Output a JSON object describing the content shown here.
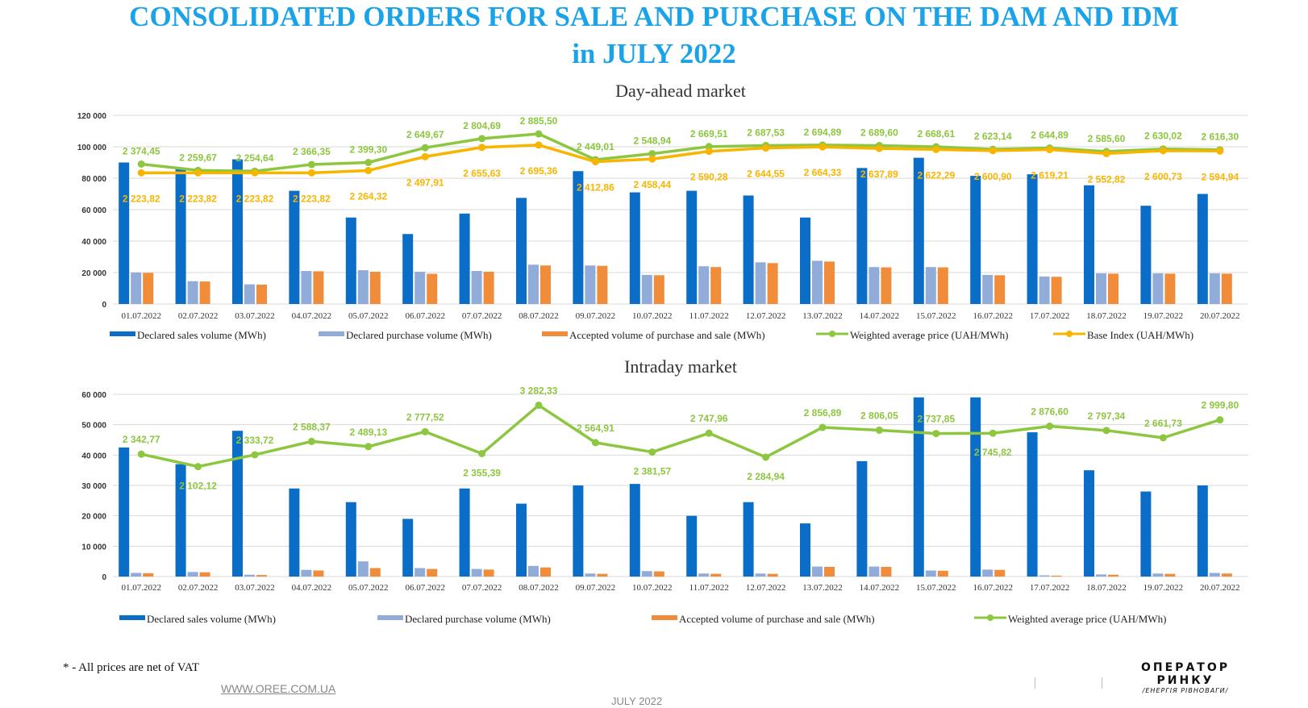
{
  "title": {
    "line1": "CONSOLIDATED ORDERS FOR SALE AND PURCHASE ON THE DAM AND IDM",
    "line2": "in JULY 2022"
  },
  "colors": {
    "title": "#1aa3e8",
    "sales": "#0a6ec8",
    "purchase": "#92acd9",
    "accepted": "#f08c3a",
    "weighted": "#8dc63f",
    "base": "#f7b500"
  },
  "footer": {
    "footnote": "* - All prices are net of VAT",
    "website": "WWW.OREE.COM.UA",
    "month": "JULY 2022",
    "logo_line1": "ОПЕРАТОР",
    "logo_line2": "РИНКУ",
    "logo_line3": "/ЕНЕРГІЯ РІВНОВАГИ/"
  },
  "chart_data": [
    {
      "type": "bar",
      "title": "Day-ahead market",
      "categories": [
        "01.07.2022",
        "02.07.2022",
        "03.07.2022",
        "04.07.2022",
        "05.07.2022",
        "06.07.2022",
        "07.07.2022",
        "08.07.2022",
        "09.07.2022",
        "10.07.2022",
        "11.07.2022",
        "12.07.2022",
        "13.07.2022",
        "14.07.2022",
        "15.07.2022",
        "16.07.2022",
        "17.07.2022",
        "18.07.2022",
        "19.07.2022",
        "20.07.2022"
      ],
      "ylim": [
        0,
        120000
      ],
      "yticks": [
        "0",
        "20 000",
        "40 000",
        "60 000",
        "80 000",
        "100 000",
        "120 000"
      ],
      "ytick_values": [
        0,
        20000,
        40000,
        60000,
        80000,
        100000,
        120000
      ],
      "grid": true,
      "legend_position": "bottom",
      "series": [
        {
          "name": "Declared sales volume (MWh)",
          "kind": "bar",
          "values": [
            90000,
            86000,
            92000,
            72000,
            55000,
            44500,
            57500,
            67500,
            84500,
            71000,
            72000,
            69000,
            55000,
            86500,
            93000,
            81500,
            82500,
            75500,
            62500,
            70000
          ]
        },
        {
          "name": "Declared purchase volume (MWh)",
          "kind": "bar",
          "values": [
            20000,
            14500,
            12500,
            21000,
            21500,
            20500,
            21000,
            25000,
            24500,
            18500,
            24000,
            26500,
            27500,
            23500,
            23500,
            18500,
            17500,
            19500,
            19500,
            19500
          ]
        },
        {
          "name": "Accepted volume of purchase and sale (MWh)",
          "kind": "bar",
          "values": [
            19800,
            14300,
            12300,
            20800,
            20500,
            19200,
            20500,
            24500,
            24300,
            18300,
            23500,
            26000,
            27000,
            23300,
            23300,
            18300,
            17300,
            19300,
            19300,
            19300
          ]
        },
        {
          "name": "Weighted average price (UAH/MWh)",
          "kind": "line",
          "values": [
            89000,
            85000,
            84500,
            88700,
            90000,
            99400,
            105200,
            108200,
            91800,
            95600,
            100100,
            100800,
            101100,
            100800,
            100000,
            98400,
            99200,
            97000,
            98600,
            98100
          ],
          "labels": [
            "2 374,45",
            "2 259,67",
            "2 254,64",
            "2 366,35",
            "2 399,30",
            "2 649,67",
            "2 804,69",
            "2 885,50",
            "2 449,01",
            "2 548,94",
            "2 669,51",
            "2 687,53",
            "2 694,89",
            "2 689,60",
            "2 668,61",
            "2 623,14",
            "2 644,89",
            "2 585,60",
            "2 630,02",
            "2 616,30"
          ]
        },
        {
          "name": "Base Index (UAH/MWh)",
          "kind": "line",
          "values": [
            83400,
            83400,
            83400,
            83400,
            84900,
            93700,
            99600,
            101100,
            90500,
            92200,
            97100,
            99200,
            99900,
            98900,
            98300,
            97500,
            98200,
            95700,
            97500,
            97300
          ],
          "labels": [
            "2 223,82",
            "2 223,82",
            "2 223,82",
            "2 223,82",
            "2 264,32",
            "2 497,91",
            "2 655,63",
            "2 695,36",
            "2 412,86",
            "2 458,44",
            "2 590,28",
            "2 644,55",
            "2 664,33",
            "2 637,89",
            "2 622,29",
            "2 600,90",
            "2 619,21",
            "2 552,82",
            "2 600,73",
            "2 594,94"
          ]
        }
      ]
    },
    {
      "type": "bar",
      "title": "Intraday market",
      "categories": [
        "01.07.2022",
        "02.07.2022",
        "03.07.2022",
        "04.07.2022",
        "05.07.2022",
        "06.07.2022",
        "07.07.2022",
        "08.07.2022",
        "09.07.2022",
        "10.07.2022",
        "11.07.2022",
        "12.07.2022",
        "13.07.2022",
        "14.07.2022",
        "15.07.2022",
        "16.07.2022",
        "17.07.2022",
        "18.07.2022",
        "19.07.2022",
        "20.07.2022"
      ],
      "ylim": [
        0,
        60000
      ],
      "yticks": [
        "0",
        "10 000",
        "20 000",
        "30 000",
        "40 000",
        "50 000",
        "60 000"
      ],
      "ytick_values": [
        0,
        10000,
        20000,
        30000,
        40000,
        50000,
        60000
      ],
      "grid": true,
      "legend_position": "bottom",
      "series": [
        {
          "name": "Declared sales volume (MWh)",
          "kind": "bar",
          "values": [
            42500,
            37000,
            48000,
            29000,
            24500,
            19000,
            29000,
            24000,
            30000,
            30500,
            20000,
            24500,
            17500,
            38000,
            59000,
            59000,
            47500,
            35000,
            28000,
            30000
          ]
        },
        {
          "name": "Declared purchase volume (MWh)",
          "kind": "bar",
          "values": [
            1200,
            1500,
            600,
            2200,
            5000,
            2800,
            2500,
            3500,
            1000,
            1800,
            1000,
            1000,
            3300,
            3300,
            2000,
            2300,
            400,
            700,
            1000,
            1200
          ]
        },
        {
          "name": "Accepted volume of purchase and sale (MWh)",
          "kind": "bar",
          "values": [
            1100,
            1400,
            500,
            2000,
            2800,
            2500,
            2300,
            3000,
            900,
            1700,
            900,
            900,
            3200,
            3200,
            1900,
            2200,
            300,
            600,
            900,
            1000
          ]
        },
        {
          "name": "Weighted average price (UAH/MWh)",
          "kind": "line",
          "values": [
            40300,
            36200,
            40100,
            44500,
            42800,
            47700,
            40500,
            56400,
            44100,
            41000,
            47200,
            39300,
            49100,
            48200,
            47100,
            47200,
            49500,
            48100,
            45700,
            51600
          ],
          "labels": [
            "2 342,77",
            "2 102,12",
            "2 333,72",
            "2 588,37",
            "2 489,13",
            "2 777,52",
            "2 355,39",
            "3 282,33",
            "2 564,91",
            "2 381,57",
            "2 747,96",
            "2 284,94",
            "2 856,89",
            "2 806,05",
            "2 737,85",
            "2 745,82",
            "2 876,60",
            "2 797,34",
            "2 661,73",
            "2 999,80"
          ]
        }
      ]
    }
  ]
}
